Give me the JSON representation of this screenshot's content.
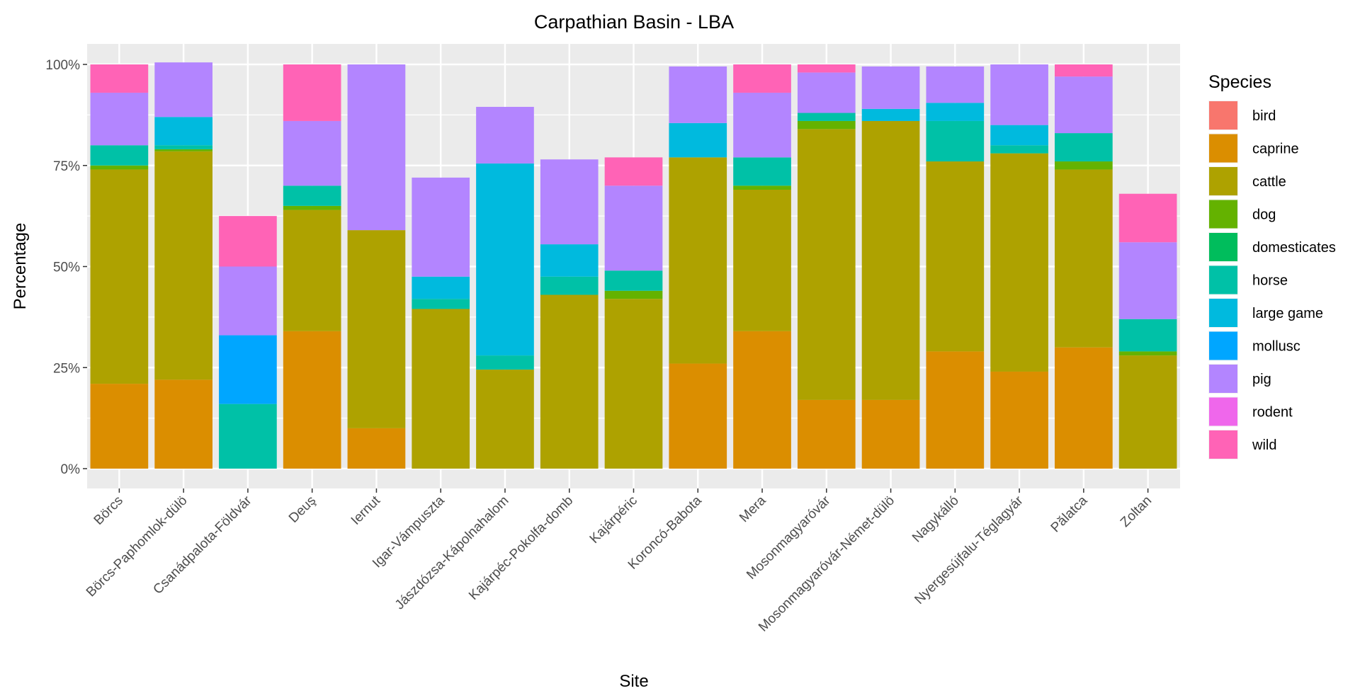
{
  "chart_data": {
    "type": "bar",
    "stacked": true,
    "title": "Carpathian Basin - LBA",
    "xlabel": "Site",
    "ylabel": "Percentage",
    "ylim": [
      0,
      1.05
    ],
    "y_ticks": [
      {
        "value": 0,
        "label": "0%"
      },
      {
        "value": 0.25,
        "label": "25%"
      },
      {
        "value": 0.5,
        "label": "50%"
      },
      {
        "value": 0.75,
        "label": "75%"
      },
      {
        "value": 1,
        "label": "100%"
      }
    ],
    "grid": true,
    "legend_title": "Species",
    "legend_position": "right",
    "categories": [
      "Börcs",
      "Börcs-Paphomlok-dülö",
      "Csanádpalota-Földvár",
      "Deuş",
      "Iernut",
      "Igar-Vámpuszta",
      "Jászdózsa-Kápolnahalom",
      "Kajárpéc-Pokolfa-domb",
      "Kajárpéric",
      "Koroncó-Babota",
      "Mera",
      "Mosonmagyaróvár",
      "Mosonmagyaróvár-Német-dülö",
      "Nagykálló",
      "Nyergesújfalu-Téglagyár",
      "Pălatca",
      "Zoltan"
    ],
    "series": [
      {
        "name": "bird",
        "color": "#F8766D",
        "values": [
          0,
          0,
          0,
          0,
          0,
          0,
          0,
          0,
          0,
          0,
          0,
          0,
          0,
          0,
          0,
          0,
          0
        ]
      },
      {
        "name": "caprine",
        "color": "#DB8E00",
        "values": [
          0.21,
          0.22,
          0,
          0.34,
          0.1,
          0,
          0,
          0,
          0,
          0.26,
          0.34,
          0.17,
          0.17,
          0.29,
          0.24,
          0.3,
          0
        ]
      },
      {
        "name": "cattle",
        "color": "#AEA200",
        "values": [
          0.53,
          0.565,
          0,
          0.3,
          0.49,
          0.395,
          0.245,
          0.43,
          0.42,
          0.51,
          0.35,
          0.67,
          0.69,
          0.47,
          0.54,
          0.44,
          0.28
        ]
      },
      {
        "name": "dog",
        "color": "#64B200",
        "values": [
          0.01,
          0.005,
          0,
          0.01,
          0,
          0,
          0,
          0,
          0.02,
          0,
          0.01,
          0.02,
          0,
          0,
          0,
          0.02,
          0.01
        ]
      },
      {
        "name": "domesticates",
        "color": "#00BD5C",
        "values": [
          0,
          0,
          0,
          0,
          0,
          0,
          0,
          0,
          0,
          0,
          0,
          0,
          0,
          0,
          0,
          0,
          0
        ]
      },
      {
        "name": "horse",
        "color": "#00C1A7",
        "values": [
          0.05,
          0.01,
          0.16,
          0.05,
          0,
          0.025,
          0.035,
          0.045,
          0.05,
          0,
          0.07,
          0.02,
          0,
          0.1,
          0.02,
          0.07,
          0.08
        ]
      },
      {
        "name": "large game",
        "color": "#00BADE",
        "values": [
          0,
          0.07,
          0,
          0,
          0,
          0.055,
          0.475,
          0.08,
          0,
          0.085,
          0,
          0,
          0.03,
          0.045,
          0.05,
          0,
          0
        ]
      },
      {
        "name": "mollusc",
        "color": "#00A6FF",
        "values": [
          0,
          0,
          0.17,
          0,
          0,
          0,
          0,
          0,
          0,
          0,
          0,
          0,
          0,
          0,
          0,
          0,
          0
        ]
      },
      {
        "name": "pig",
        "color": "#B385FF",
        "values": [
          0.13,
          0.135,
          0.17,
          0.16,
          0.41,
          0.245,
          0.14,
          0.21,
          0.21,
          0.14,
          0.16,
          0.1,
          0.105,
          0.09,
          0.15,
          0.14,
          0.19
        ]
      },
      {
        "name": "rodent",
        "color": "#EF67EB",
        "values": [
          0,
          0,
          0,
          0,
          0,
          0,
          0,
          0,
          0,
          0,
          0,
          0,
          0,
          0,
          0,
          0,
          0
        ]
      },
      {
        "name": "wild",
        "color": "#FF63B6",
        "values": [
          0.07,
          0,
          0.125,
          0.14,
          0,
          0,
          0,
          0,
          0.07,
          0,
          0.07,
          0.02,
          0,
          0,
          0,
          0.03,
          0.12
        ]
      }
    ]
  }
}
